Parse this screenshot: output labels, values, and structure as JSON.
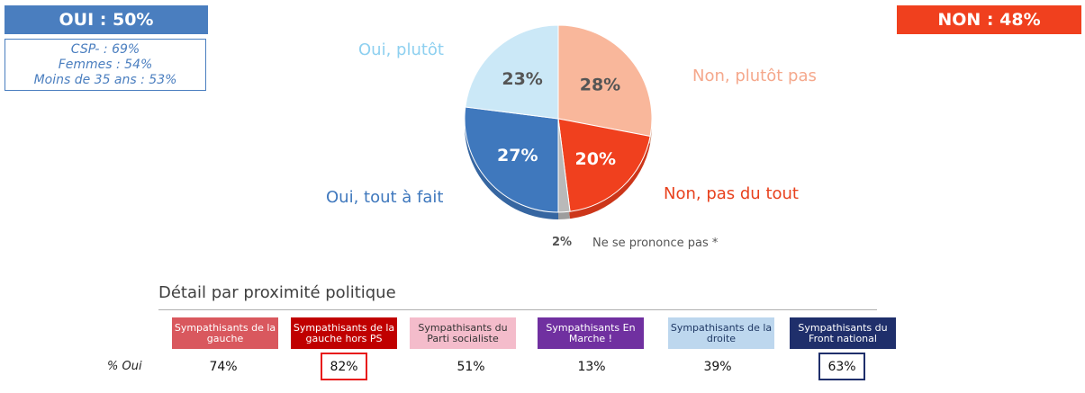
{
  "summary": {
    "oui": {
      "label": "OUI : 50%",
      "color": "#4a7ebf"
    },
    "non": {
      "label": "NON : 48%",
      "color": "#f0401e"
    },
    "oui_details": [
      "CSP- : 69%",
      "Femmes : 54%",
      "Moins de 35 ans : 53%"
    ]
  },
  "chart_data": [
    {
      "type": "pie",
      "slices": [
        {
          "name": "Non, plutôt pas",
          "value": 28,
          "label": "28%",
          "color": "#f9b79b",
          "text_color": "#555555"
        },
        {
          "name": "Non, pas du tout",
          "value": 20,
          "label": "20%",
          "color": "#f0401e",
          "text_color": "#ffffff"
        },
        {
          "name": "Ne se prononce pas *",
          "value": 2,
          "label": "2%",
          "color": "#b9b9b9",
          "text_color": "#555555"
        },
        {
          "name": "Oui, tout à fait",
          "value": 27,
          "label": "27%",
          "color": "#3f78bd",
          "text_color": "#ffffff"
        },
        {
          "name": "Oui, plutôt",
          "value": 23,
          "label": "23%",
          "color": "#cbe8f7",
          "text_color": "#555555"
        }
      ]
    },
    {
      "type": "table",
      "title": "Détail par proximité politique",
      "row_label": "% Oui",
      "categories": [
        {
          "label": "Sympathisants de la gauche",
          "value": "74%",
          "bg": "#d9585e",
          "fg": "#ffffff",
          "highlight": null
        },
        {
          "label": "Sympathisants de la gauche hors PS",
          "value": "82%",
          "bg": "#c00000",
          "fg": "#ffffff",
          "highlight": "#e81a1a"
        },
        {
          "label": "Sympathisants du Parti socialiste",
          "value": "51%",
          "bg": "#f4bccb",
          "fg": "#333333",
          "highlight": null
        },
        {
          "label": "Sympathisants En Marche !",
          "value": "13%",
          "bg": "#7030a0",
          "fg": "#ffffff",
          "highlight": null
        },
        {
          "label": "Sympathisants de la droite",
          "value": "39%",
          "bg": "#bdd7ee",
          "fg": "#1f3864",
          "highlight": null
        },
        {
          "label": "Sympathisants du Front national",
          "value": "63%",
          "bg": "#1f2f6b",
          "fg": "#ffffff",
          "highlight": "#1f2f6b"
        }
      ]
    }
  ]
}
